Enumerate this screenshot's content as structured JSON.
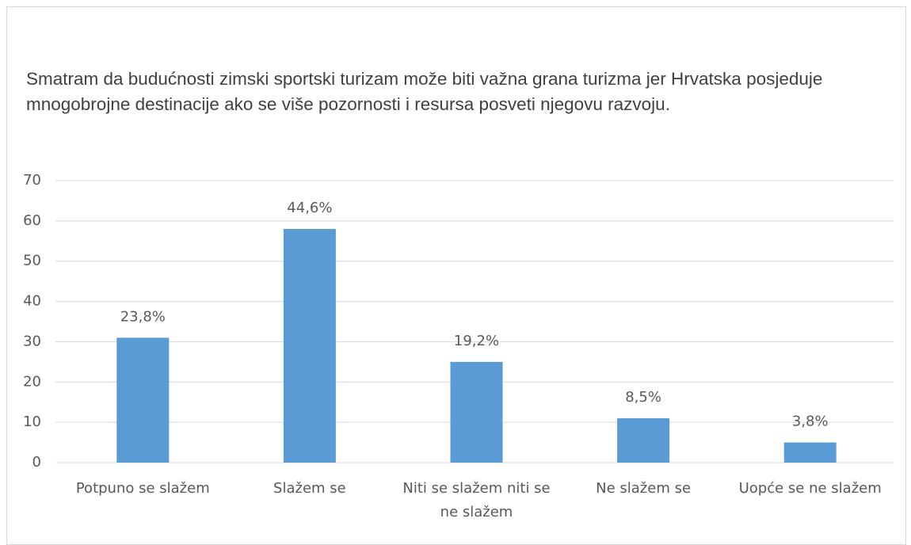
{
  "chart_data": {
    "type": "bar",
    "title": "Smatram da budućnosti zimski sportski turizam može biti važna grana turizma jer Hrvatska posjeduje mnogobrojne destinacije ako se više pozornosti i resursa posveti njegovu razvoju.",
    "categories": [
      "Potpuno se slažem",
      "Slažem se",
      "Niti se slažem niti se ne slažem",
      "Ne slažem se",
      "Uopće se ne slažem"
    ],
    "values": [
      31,
      58,
      25,
      11,
      5
    ],
    "value_labels": [
      "23,8%",
      "44,6%",
      "19,2%",
      "8,5%",
      "3,8%"
    ],
    "color": "#5b9bd5",
    "ylim": [
      0,
      70
    ],
    "yticks": [
      0,
      10,
      20,
      30,
      40,
      50,
      60,
      70
    ],
    "grid": true
  }
}
